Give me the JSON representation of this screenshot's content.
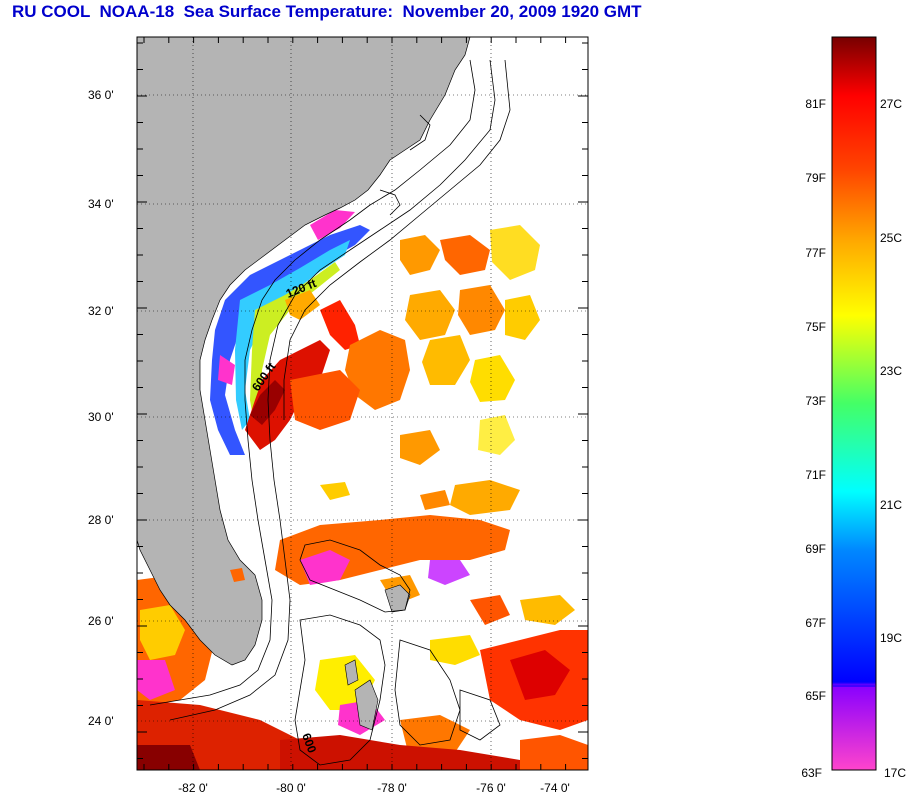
{
  "title": "RU COOL  NOAA-18  Sea Surface Temperature:  November 20, 2009 1920 GMT",
  "map": {
    "lat_ticks": [
      "36 0'",
      "34 0'",
      "32 0'",
      "30 0'",
      "28 0'",
      "26 0'",
      "24 0'"
    ],
    "lon_ticks": [
      "-82 0'",
      "-80 0'",
      "-78 0'",
      "-76 0'",
      "-74 0'"
    ],
    "contour_labels": [
      "120 ft",
      "600 ft",
      "600"
    ],
    "land_color": "#b4b4b4",
    "no_data_color": "#ffffff"
  },
  "colorbar": {
    "f_labels": [
      "81F",
      "79F",
      "77F",
      "75F",
      "73F",
      "71F",
      "69F",
      "67F",
      "65F",
      "63F"
    ],
    "c_labels": [
      "27C",
      "25C",
      "23C",
      "21C",
      "19C",
      "17C"
    ],
    "colors": [
      "#ff33cc",
      "#9900ff",
      "#0000ff",
      "#00aaff",
      "#00ffff",
      "#00ff88",
      "#aaff00",
      "#ffff00",
      "#ff9900",
      "#ff3300",
      "#cc0000",
      "#7a0000"
    ]
  }
}
